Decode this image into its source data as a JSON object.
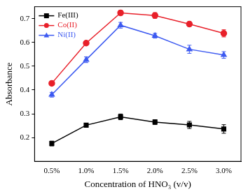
{
  "chart_data": {
    "type": "line",
    "x_label": "Concentration of HNO₃ (v/v)",
    "y_label": "Absorbance",
    "categories": [
      "0.5%",
      "1.0%",
      "1.5%",
      "2.0%",
      "2.5%",
      "3.0%"
    ],
    "series": [
      {
        "name": "Fe(III)",
        "color": "#000000",
        "marker": "square",
        "line_style": "solid",
        "values": [
          0.175,
          0.252,
          0.287,
          0.265,
          0.253,
          0.236
        ],
        "errors": [
          0.01,
          0.008,
          0.012,
          0.01,
          0.015,
          0.018
        ]
      },
      {
        "name": "Co(II)",
        "color": "#e8202a",
        "marker": "circle",
        "line_style": "solid",
        "values": [
          0.428,
          0.597,
          0.724,
          0.713,
          0.677,
          0.638
        ],
        "errors": [
          0.008,
          0.005,
          0.01,
          0.012,
          0.01,
          0.015
        ]
      },
      {
        "name": "Ni(II)",
        "color": "#3d5af1",
        "marker": "triangle",
        "line_style": "solid",
        "values": [
          0.38,
          0.527,
          0.672,
          0.628,
          0.571,
          0.547
        ],
        "errors": [
          0.01,
          0.012,
          0.012,
          0.01,
          0.017,
          0.014
        ]
      }
    ],
    "ylim": [
      0.1,
      0.75
    ],
    "yticks": [
      0.2,
      0.3,
      0.4,
      0.5,
      0.6,
      0.7
    ],
    "grid": false,
    "legend": "top-left"
  }
}
